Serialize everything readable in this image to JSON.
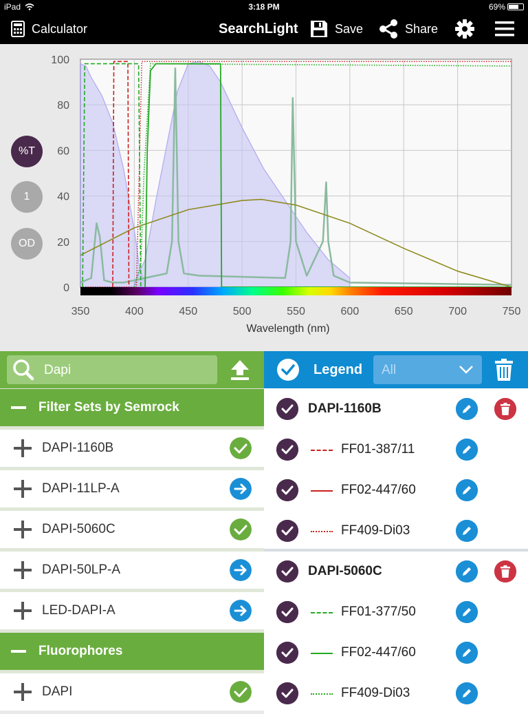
{
  "status_bar": {
    "device": "iPad",
    "time": "3:18 PM",
    "battery": "69%"
  },
  "toolbar": {
    "calculator_label": "Calculator",
    "app_title": "SearchLight",
    "save_label": "Save",
    "share_label": "Share"
  },
  "chart_modes": {
    "transmission": "%T",
    "normalized": "1",
    "od": "OD"
  },
  "chart_data": {
    "type": "line",
    "xlabel": "Wavelength (nm)",
    "ylabel": "",
    "xlim": [
      350,
      750
    ],
    "ylim": [
      0,
      100
    ],
    "x_ticks": [
      "350",
      "400",
      "450",
      "500",
      "550",
      "600",
      "650",
      "700",
      "750"
    ],
    "y_ticks": [
      "0",
      "20",
      "40",
      "60",
      "80",
      "100"
    ],
    "grid": true,
    "colors": {
      "excitation_dapi": "#c4c3f3",
      "emission_dapi": "#b0a9ee",
      "led_source": "#8aba9f",
      "blackbody": "#8e8a1f",
      "semrock_red": "#cc1f1f",
      "semrock_green": "#22aa22"
    },
    "series": [
      {
        "style": "filled-lavender",
        "x": [
          350,
          355,
          360,
          370,
          380,
          390,
          400,
          405,
          410
        ],
        "y": [
          98,
          97,
          92,
          84,
          72,
          52,
          25,
          8,
          2
        ]
      },
      {
        "style": "filled-lavender",
        "x": [
          400,
          410,
          420,
          430,
          440,
          450,
          460,
          470,
          480,
          500,
          520,
          540,
          560,
          580,
          600
        ],
        "y": [
          2,
          12,
          38,
          62,
          86,
          98,
          99,
          97,
          90,
          70,
          52,
          38,
          24,
          12,
          4
        ]
      },
      {
        "style": "led-peaks",
        "x": [
          350,
          360,
          365,
          368,
          372,
          380,
          390,
          400,
          430,
          435,
          438,
          441,
          446,
          460,
          540,
          545,
          547,
          550,
          560,
          575,
          578,
          580,
          585,
          600,
          750
        ],
        "y": [
          2,
          4,
          28,
          22,
          3,
          2,
          2,
          3,
          6,
          20,
          96,
          20,
          6,
          5,
          4,
          20,
          83,
          20,
          5,
          20,
          46,
          20,
          5,
          2,
          1
        ]
      },
      {
        "style": "blackbody",
        "x": [
          350,
          400,
          450,
          500,
          518,
          550,
          600,
          650,
          700,
          750
        ],
        "y": [
          14,
          26,
          34,
          38,
          38.5,
          36,
          28,
          17,
          7,
          0
        ]
      },
      {
        "style": "red-dashed",
        "x": [
          380,
          381,
          382,
          393,
          394,
          395
        ],
        "y": [
          0,
          99,
          99,
          99,
          99,
          0
        ]
      },
      {
        "style": "red-dotted",
        "x": [
          350,
          402,
          405,
          407,
          750
        ],
        "y": [
          0,
          0,
          60,
          99,
          99
        ]
      },
      {
        "style": "green-dashed",
        "x": [
          352,
          354,
          356,
          402,
          404,
          406
        ],
        "y": [
          0,
          98,
          98,
          98,
          98,
          0
        ]
      },
      {
        "style": "green-solid",
        "x": [
          410,
          412,
          415,
          420,
          480,
          481,
          750
        ],
        "y": [
          0,
          60,
          95,
          98,
          98,
          0,
          0
        ]
      },
      {
        "style": "green-dotted",
        "x": [
          400,
          406,
          409,
          415,
          750
        ],
        "y": [
          0,
          10,
          50,
          98,
          97
        ]
      }
    ]
  },
  "search": {
    "value": "Dapi"
  },
  "groups": [
    {
      "title": "Filter Sets by Semrock",
      "items": [
        {
          "label": "DAPI-1160B",
          "status": "added"
        },
        {
          "label": "DAPI-11LP-A",
          "status": "navigate"
        },
        {
          "label": "DAPI-5060C",
          "status": "added"
        },
        {
          "label": "DAPI-50LP-A",
          "status": "navigate"
        },
        {
          "label": "LED-DAPI-A",
          "status": "navigate"
        }
      ]
    },
    {
      "title": "Fluorophores",
      "items": [
        {
          "label": "DAPI",
          "status": "added"
        }
      ]
    }
  ],
  "legend": {
    "title": "Legend",
    "filter_placeholder": "All",
    "sets": [
      {
        "name": "DAPI-1160B",
        "items": [
          {
            "label": "FF01-387/11",
            "line": "dashed",
            "color": "#cc1f1f"
          },
          {
            "label": "FF02-447/60",
            "line": "solid",
            "color": "#cc1f1f"
          },
          {
            "label": "FF409-Di03",
            "line": "dotted",
            "color": "#cc1f1f"
          }
        ]
      },
      {
        "name": "DAPI-5060C",
        "items": [
          {
            "label": "FF01-377/50",
            "line": "dashed",
            "color": "#22aa22"
          },
          {
            "label": "FF02-447/60",
            "line": "solid",
            "color": "#22aa22"
          },
          {
            "label": "FF409-Di03",
            "line": "dotted",
            "color": "#22aa22"
          }
        ]
      }
    ]
  }
}
